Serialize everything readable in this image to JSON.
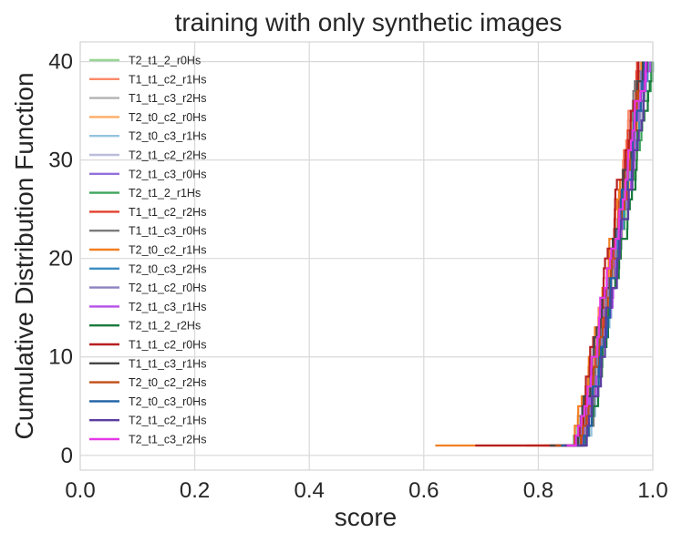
{
  "chart_data": {
    "type": "line",
    "title": "training with only synthetic images",
    "xlabel": "score",
    "ylabel": "Cumulative Distribution Function",
    "xlim": [
      0.0,
      1.0
    ],
    "ylim": [
      -1.5,
      42
    ],
    "xticks": [
      "0.0",
      "0.2",
      "0.4",
      "0.6",
      "0.8",
      "1.0"
    ],
    "yticks": [
      "0",
      "10",
      "20",
      "30",
      "40"
    ],
    "grid": true,
    "legend_position": "upper-left",
    "drawstyle": "steps",
    "series": [
      {
        "name": "T2_t1_2_r0Hs",
        "color": "#98d594",
        "start": 0.855,
        "end": 0.99
      },
      {
        "name": "T1_t1_c2_r1Hs",
        "color": "#fc8a6a",
        "start": 0.81,
        "end": 0.975
      },
      {
        "name": "T1_t1_c3_r2Hs",
        "color": "#b2b2b2",
        "start": 0.84,
        "end": 0.98
      },
      {
        "name": "T2_t0_c2_r0Hs",
        "color": "#fdab67",
        "start": 0.85,
        "end": 0.985
      },
      {
        "name": "T2_t0_c3_r1Hs",
        "color": "#94c4df",
        "start": 0.835,
        "end": 0.985
      },
      {
        "name": "T2_t1_c2_r2Hs",
        "color": "#bcbddc",
        "start": 0.85,
        "end": 0.99
      },
      {
        "name": "T2_t1_c3_r0Hs",
        "color": "#9370db",
        "start": 0.855,
        "end": 0.985
      },
      {
        "name": "T2_t1_2_r1Hs",
        "color": "#3ea55d",
        "start": 0.865,
        "end": 0.995
      },
      {
        "name": "T1_t1_c2_r2Hs",
        "color": "#e2402d",
        "start": 0.78,
        "end": 0.97
      },
      {
        "name": "T1_t1_c3_r0Hs",
        "color": "#7b7b7b",
        "start": 0.82,
        "end": 0.975
      },
      {
        "name": "T2_t0_c2_r1Hs",
        "color": "#f27f22",
        "start": 0.62,
        "end": 0.98
      },
      {
        "name": "T2_t0_c3_r2Hs",
        "color": "#3d8dc3",
        "start": 0.83,
        "end": 0.99
      },
      {
        "name": "T2_t1_c2_r0Hs",
        "color": "#8b82c0",
        "start": 0.84,
        "end": 0.985
      },
      {
        "name": "T2_t1_c3_r1Hs",
        "color": "#b74fe8",
        "start": 0.85,
        "end": 0.99
      },
      {
        "name": "T2_t1_2_r2Hs",
        "color": "#1a7a3c",
        "start": 0.86,
        "end": 0.995
      },
      {
        "name": "T1_t1_c2_r0Hs",
        "color": "#b71f1f",
        "start": 0.69,
        "end": 0.975
      },
      {
        "name": "T1_t1_c3_r1Hs",
        "color": "#464646",
        "start": 0.82,
        "end": 0.98
      },
      {
        "name": "T2_t0_c2_r2Hs",
        "color": "#c24c14",
        "start": 0.83,
        "end": 0.985
      },
      {
        "name": "T2_t0_c3_r0Hs",
        "color": "#1f62a5",
        "start": 0.84,
        "end": 0.985
      },
      {
        "name": "T2_t1_c2_r1Hs",
        "color": "#5c3da0",
        "start": 0.845,
        "end": 0.99
      },
      {
        "name": "T2_t1_c3_r2Hs",
        "color": "#e638e6",
        "start": 0.85,
        "end": 0.985
      }
    ]
  }
}
